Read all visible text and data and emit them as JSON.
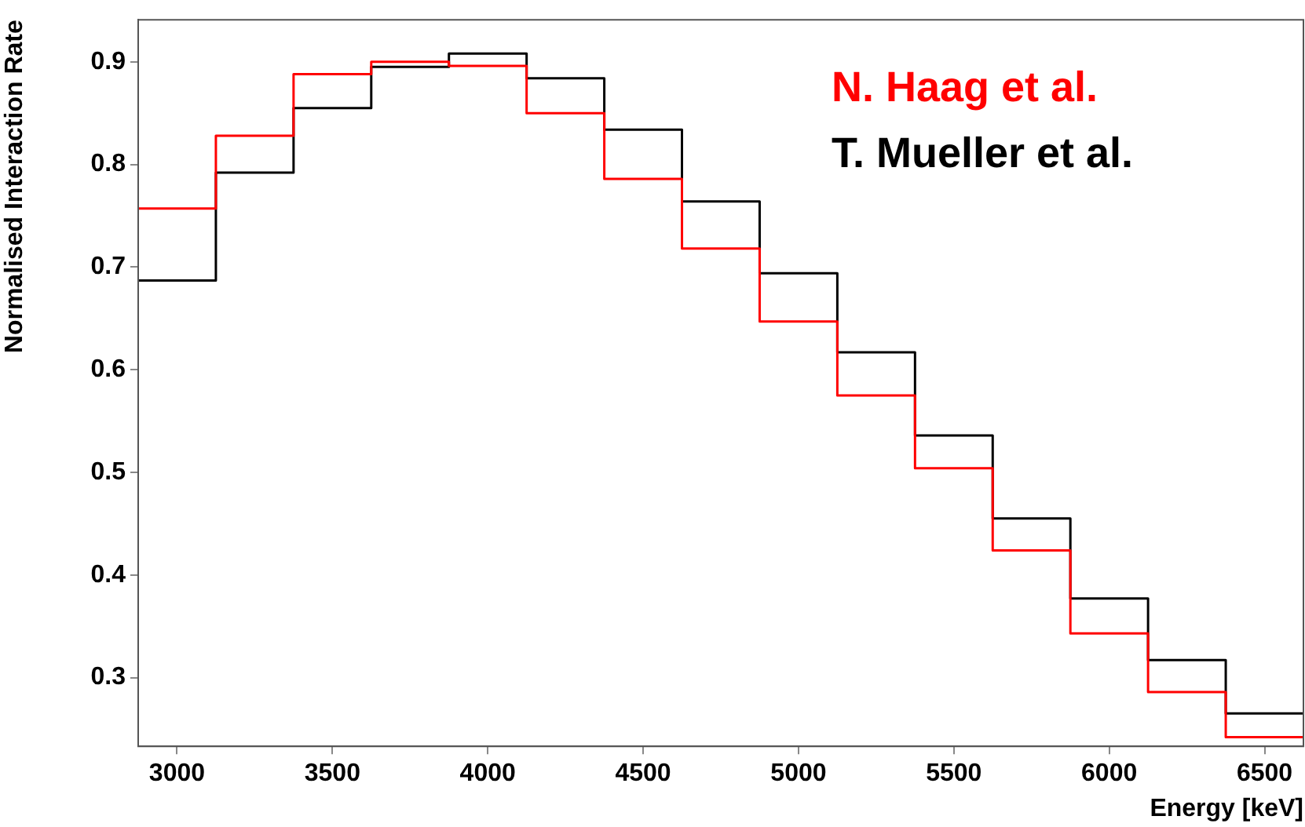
{
  "chart_data": {
    "type": "histogram",
    "xlabel": "Energy [keV]",
    "ylabel": "Normalised Interaction Rate",
    "bins": [
      2875,
      3125,
      3375,
      3625,
      3875,
      4125,
      4375,
      4625,
      4875,
      5125,
      5375,
      5625,
      5875,
      6125,
      6375,
      6625
    ],
    "series": [
      {
        "name": "N. Haag et al.",
        "color": "#ff0000",
        "values": [
          0.757,
          0.828,
          0.888,
          0.9,
          0.896,
          0.85,
          0.786,
          0.718,
          0.647,
          0.575,
          0.504,
          0.424,
          0.343,
          0.286,
          0.242
        ]
      },
      {
        "name": "T. Mueller et al.",
        "color": "#000000",
        "values": [
          0.687,
          0.792,
          0.855,
          0.895,
          0.908,
          0.884,
          0.834,
          0.764,
          0.694,
          0.617,
          0.536,
          0.455,
          0.377,
          0.317,
          0.265
        ]
      }
    ],
    "xlim": [
      2875,
      6625
    ],
    "xticks": [
      3000,
      3500,
      4000,
      4500,
      5000,
      5500,
      6000,
      6500
    ],
    "ylim": [
      0.233,
      0.941
    ],
    "yticks": [
      0.3,
      0.4,
      0.5,
      0.6,
      0.7,
      0.8,
      0.9
    ],
    "legend": "top right",
    "grid": false
  }
}
